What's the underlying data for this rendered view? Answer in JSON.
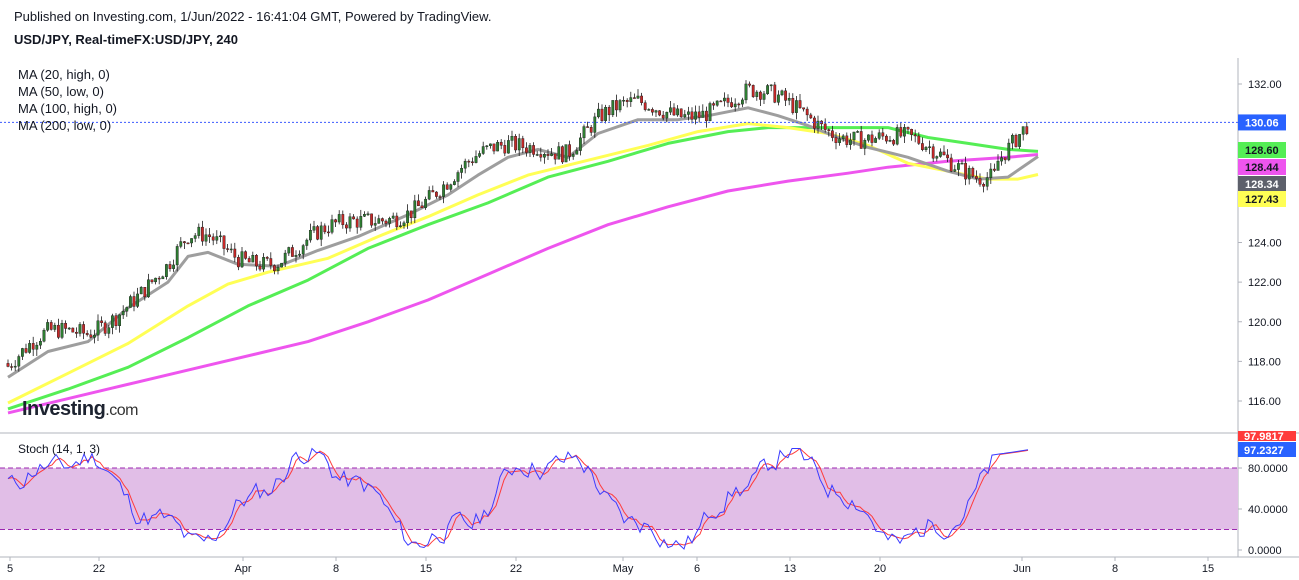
{
  "header": {
    "published": "Published on Investing.com, 1/Jun/2022 - 16:41:04 GMT, Powered by TradingView.",
    "symbol": "USD/JPY, Real-timeFX:USD/JPY, 240"
  },
  "legend": {
    "ma20": "MA (20, high, 0)",
    "ma50": "MA (50, low, 0)",
    "ma100": "MA (100, high, 0)",
    "ma200": "MA (200, low, 0)"
  },
  "logo": {
    "main": "Investing",
    "suffix": ".com"
  },
  "stoch": {
    "label": "Stoch (14, 1, 3)"
  },
  "colors": {
    "ma20": "#9e9e9e",
    "ma50": "#ffff55",
    "ma100": "#55ee55",
    "ma200": "#ee55ee",
    "up": "#2e7d32",
    "down": "#c62828",
    "stoch_fast": "#3b3bff",
    "stoch_slow": "#ff3b3b",
    "stoch_band": "#e1bee7"
  },
  "chart_data": {
    "type": "line",
    "title": "USD/JPY, Real-timeFX:USD/JPY, 240",
    "x_ticks": [
      "5",
      "22",
      "Apr",
      "8",
      "15",
      "22",
      "May",
      "6",
      "13",
      "20",
      "Jun",
      "8",
      "15"
    ],
    "price_axis": {
      "ylim": [
        115,
        134
      ],
      "ticks": [
        "132.00",
        "130.00",
        "128.00",
        "126.00",
        "124.00",
        "122.00",
        "120.00",
        "118.00",
        "116.00"
      ]
    },
    "last_price": "130.06",
    "ma_values": {
      "ma100": "128.60",
      "ma200": "128.44",
      "ma20": "128.34",
      "ma50": "127.43"
    },
    "series": [
      {
        "name": "MA (20, high, 0)",
        "points": [
          [
            0,
            117.2
          ],
          [
            40,
            118.5
          ],
          [
            80,
            119.0
          ],
          [
            120,
            120.7
          ],
          [
            160,
            122.0
          ],
          [
            180,
            123.3
          ],
          [
            200,
            123.5
          ],
          [
            230,
            122.9
          ],
          [
            270,
            122.8
          ],
          [
            310,
            123.6
          ],
          [
            350,
            124.3
          ],
          [
            400,
            125.4
          ],
          [
            440,
            126.4
          ],
          [
            470,
            127.4
          ],
          [
            500,
            128.3
          ],
          [
            530,
            128.7
          ],
          [
            560,
            128.3
          ],
          [
            590,
            129.5
          ],
          [
            630,
            130.2
          ],
          [
            670,
            130.2
          ],
          [
            700,
            130.4
          ],
          [
            740,
            130.8
          ],
          [
            770,
            130.4
          ],
          [
            800,
            129.9
          ],
          [
            830,
            129.3
          ],
          [
            860,
            128.8
          ],
          [
            900,
            128.3
          ],
          [
            940,
            127.6
          ],
          [
            970,
            127.2
          ],
          [
            1000,
            127.3
          ],
          [
            1030,
            128.34
          ]
        ]
      },
      {
        "name": "MA (50, low, 0)",
        "points": [
          [
            0,
            115.9
          ],
          [
            60,
            117.4
          ],
          [
            120,
            118.9
          ],
          [
            180,
            120.8
          ],
          [
            220,
            121.9
          ],
          [
            260,
            122.5
          ],
          [
            320,
            123.2
          ],
          [
            370,
            124.3
          ],
          [
            420,
            125.3
          ],
          [
            470,
            126.4
          ],
          [
            520,
            127.4
          ],
          [
            560,
            127.9
          ],
          [
            600,
            128.4
          ],
          [
            640,
            128.9
          ],
          [
            690,
            129.6
          ],
          [
            740,
            130.0
          ],
          [
            780,
            129.8
          ],
          [
            820,
            129.5
          ],
          [
            860,
            128.9
          ],
          [
            900,
            128.0
          ],
          [
            940,
            127.6
          ],
          [
            980,
            127.2
          ],
          [
            1010,
            127.2
          ],
          [
            1030,
            127.43
          ]
        ]
      },
      {
        "name": "MA (100, high, 0)",
        "points": [
          [
            0,
            115.6
          ],
          [
            60,
            116.6
          ],
          [
            120,
            117.7
          ],
          [
            180,
            119.2
          ],
          [
            240,
            120.8
          ],
          [
            300,
            122.1
          ],
          [
            360,
            123.7
          ],
          [
            420,
            124.9
          ],
          [
            480,
            126.0
          ],
          [
            540,
            127.3
          ],
          [
            600,
            128.1
          ],
          [
            660,
            129.0
          ],
          [
            720,
            129.6
          ],
          [
            760,
            129.8
          ],
          [
            800,
            129.8
          ],
          [
            850,
            129.8
          ],
          [
            880,
            129.8
          ],
          [
            920,
            129.3
          ],
          [
            960,
            129.0
          ],
          [
            1000,
            128.7
          ],
          [
            1030,
            128.6
          ]
        ]
      },
      {
        "name": "MA (200, low, 0)",
        "points": [
          [
            0,
            115.4
          ],
          [
            100,
            116.6
          ],
          [
            200,
            117.8
          ],
          [
            300,
            119.0
          ],
          [
            360,
            120.0
          ],
          [
            420,
            121.1
          ],
          [
            480,
            122.4
          ],
          [
            540,
            123.7
          ],
          [
            600,
            124.9
          ],
          [
            660,
            125.8
          ],
          [
            720,
            126.6
          ],
          [
            780,
            127.1
          ],
          [
            840,
            127.5
          ],
          [
            880,
            127.8
          ],
          [
            940,
            128.1
          ],
          [
            1000,
            128.3
          ],
          [
            1030,
            128.44
          ]
        ]
      }
    ],
    "stoch_axis": {
      "ylim": [
        0,
        100
      ],
      "ticks": [
        "80.0000",
        "40.0000",
        "0.0000"
      ],
      "band": [
        20,
        80
      ],
      "last_fast": "97.9817",
      "last_slow": "97.2327"
    }
  }
}
